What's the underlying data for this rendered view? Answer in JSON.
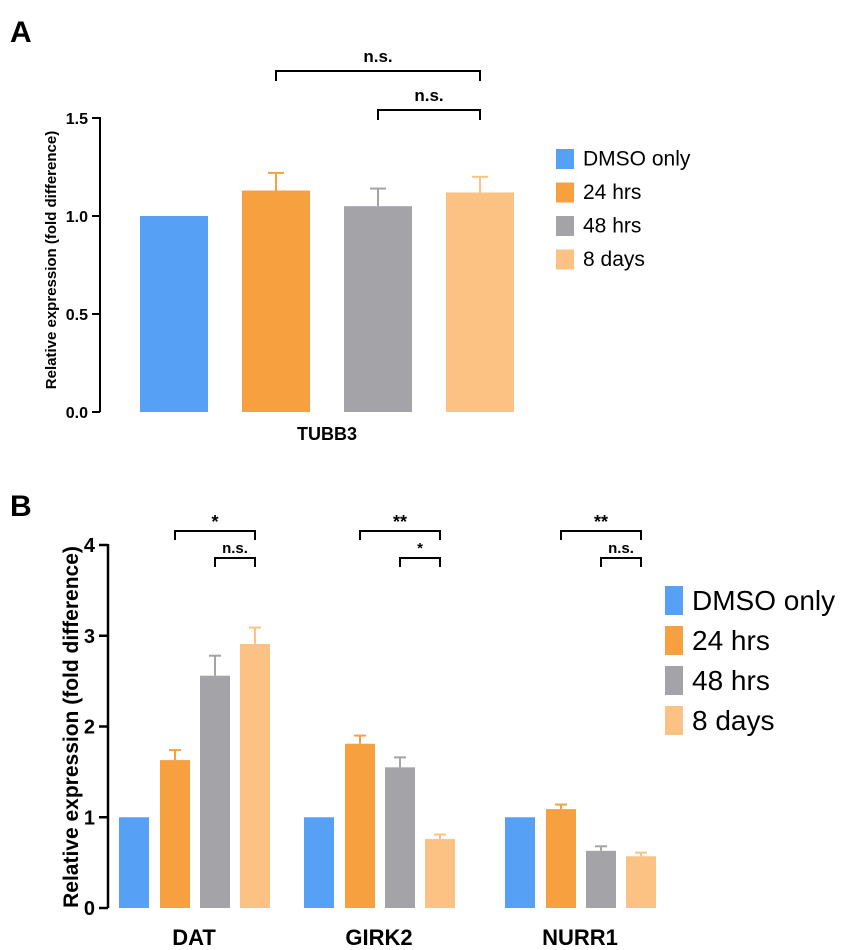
{
  "colors": {
    "DMSO only": "#56A0F5",
    "24 hrs": "#F7A040",
    "48 hrs": "#A3A3A8",
    "8 days": "#FCC283",
    "axis": "#000000"
  },
  "panels": {
    "A": {
      "label": "A",
      "xlabel": "TUBB3",
      "ylabel": "Relative expression (fold difference)"
    },
    "B": {
      "label": "B",
      "xlabel": "",
      "ylabel": "Relative expression (fold difference)"
    }
  },
  "chart_data": [
    {
      "panel": "A",
      "type": "bar",
      "title": "",
      "xlabel": "TUBB3",
      "ylabel": "Relative expression (fold difference)",
      "ylim": [
        0,
        1.5
      ],
      "yticks": [
        "0.0",
        "0.5",
        "1.0",
        "1.5"
      ],
      "categories": [
        "TUBB3"
      ],
      "series": [
        {
          "name": "DMSO only",
          "values": [
            1.0
          ],
          "errors": [
            0
          ]
        },
        {
          "name": "24 hrs",
          "values": [
            1.13
          ],
          "errors": [
            0.09
          ]
        },
        {
          "name": "48 hrs",
          "values": [
            1.05
          ],
          "errors": [
            0.09
          ]
        },
        {
          "name": "8 days",
          "values": [
            1.12
          ],
          "errors": [
            0.08
          ]
        }
      ],
      "legend": {
        "position": "right",
        "entries": [
          "DMSO only",
          "24 hrs",
          "48 hrs",
          "8 days"
        ]
      },
      "annotations": [
        {
          "from": "24 hrs",
          "to": "8 days",
          "category": "TUBB3",
          "text": "n.s."
        },
        {
          "from": "48 hrs",
          "to": "8 days",
          "category": "TUBB3",
          "text": "n.s."
        }
      ]
    },
    {
      "panel": "B",
      "type": "bar",
      "title": "",
      "xlabel": "",
      "ylabel": "Relative expression (fold difference)",
      "ylim": [
        0,
        4
      ],
      "yticks": [
        "0",
        "1",
        "2",
        "3",
        "4"
      ],
      "categories": [
        "DAT",
        "GIRK2",
        "NURR1"
      ],
      "series": [
        {
          "name": "DMSO only",
          "values": [
            1.0,
            1.0,
            1.0
          ],
          "errors": [
            0,
            0,
            0
          ]
        },
        {
          "name": "24 hrs",
          "values": [
            1.63,
            1.81,
            1.09
          ],
          "errors": [
            0.11,
            0.09,
            0.05
          ]
        },
        {
          "name": "48 hrs",
          "values": [
            2.56,
            1.55,
            0.63
          ],
          "errors": [
            0.22,
            0.11,
            0.05
          ]
        },
        {
          "name": "8 days",
          "values": [
            2.91,
            0.76,
            0.57
          ],
          "errors": [
            0.18,
            0.05,
            0.04
          ]
        }
      ],
      "legend": {
        "position": "right",
        "entries": [
          "DMSO only",
          "24 hrs",
          "48 hrs",
          "8 days"
        ]
      },
      "annotations": [
        {
          "from": "24 hrs",
          "to": "8 days",
          "category": "DAT",
          "text": "*"
        },
        {
          "from": "48 hrs",
          "to": "8 days",
          "category": "DAT",
          "text": "n.s."
        },
        {
          "from": "24 hrs",
          "to": "8 days",
          "category": "GIRK2",
          "text": "**"
        },
        {
          "from": "48 hrs",
          "to": "8 days",
          "category": "GIRK2",
          "text": "*"
        },
        {
          "from": "24 hrs",
          "to": "8 days",
          "category": "NURR1",
          "text": "**"
        },
        {
          "from": "48 hrs",
          "to": "8 days",
          "category": "NURR1",
          "text": "n.s."
        }
      ]
    }
  ]
}
